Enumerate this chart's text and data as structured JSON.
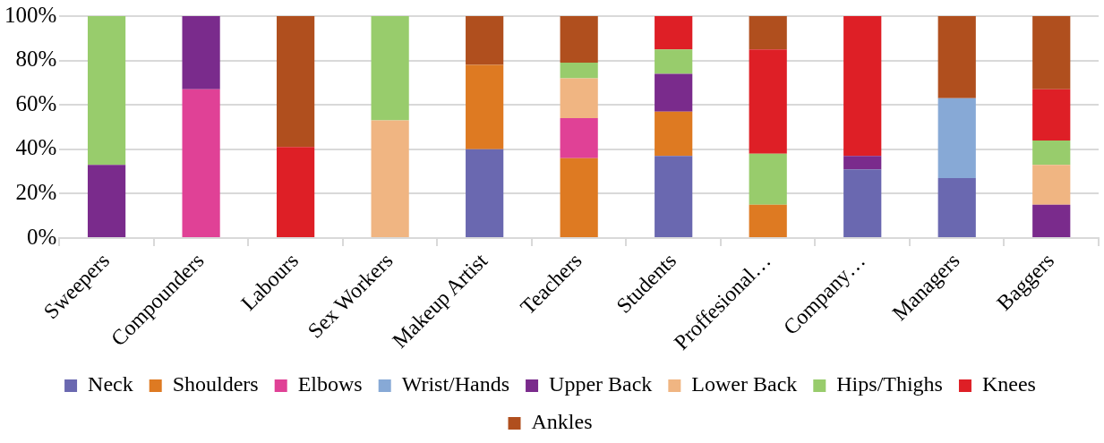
{
  "chart_data": {
    "type": "bar",
    "stacked": true,
    "categories": [
      "Sweepers",
      "Compounders",
      "Labours",
      "Sex Workers",
      "Makeup Artist",
      "Teachers",
      "Students",
      "Proffesional…",
      "Company…",
      "Managers",
      "Baggers"
    ],
    "series": [
      {
        "name": "Neck",
        "color": "#6a68b0",
        "values": [
          null,
          null,
          null,
          null,
          40,
          null,
          37,
          null,
          31,
          27,
          null
        ]
      },
      {
        "name": "Shoulders",
        "color": "#de7a22",
        "values": [
          null,
          null,
          null,
          null,
          38,
          36,
          20,
          15,
          null,
          null,
          null
        ]
      },
      {
        "name": "Elbows",
        "color": "#e04196",
        "values": [
          null,
          67,
          null,
          null,
          null,
          18,
          null,
          null,
          null,
          null,
          null
        ]
      },
      {
        "name": "Wrist/Hands",
        "color": "#87a9d6",
        "values": [
          null,
          null,
          null,
          null,
          null,
          null,
          null,
          null,
          null,
          36,
          null
        ]
      },
      {
        "name": "Upper Back",
        "color": "#7a2b8c",
        "values": [
          33,
          33,
          null,
          null,
          null,
          null,
          17,
          null,
          6,
          null,
          15
        ]
      },
      {
        "name": "Lower Back",
        "color": "#f0b582",
        "values": [
          null,
          null,
          null,
          53,
          null,
          18,
          null,
          null,
          null,
          null,
          18
        ]
      },
      {
        "name": "Hips/Thighs",
        "color": "#98cc6c",
        "values": [
          67,
          null,
          null,
          47,
          null,
          7,
          11,
          23,
          null,
          null,
          11
        ]
      },
      {
        "name": "Knees",
        "color": "#de1f26",
        "values": [
          null,
          null,
          41,
          null,
          null,
          null,
          15,
          47,
          63,
          null,
          23
        ]
      },
      {
        "name": "Ankles",
        "color": "#b04f1e",
        "values": [
          null,
          null,
          59,
          null,
          22,
          21,
          null,
          15,
          null,
          37,
          33
        ]
      }
    ],
    "ylim": [
      0,
      100
    ],
    "yticks": [
      {
        "value": 0,
        "label": "0%"
      },
      {
        "value": 20,
        "label": "20%"
      },
      {
        "value": 40,
        "label": "40%"
      },
      {
        "value": 60,
        "label": "60%"
      },
      {
        "value": 80,
        "label": "80%"
      },
      {
        "value": 100,
        "label": "100%"
      }
    ],
    "grid": "y",
    "legend": "bottom"
  }
}
